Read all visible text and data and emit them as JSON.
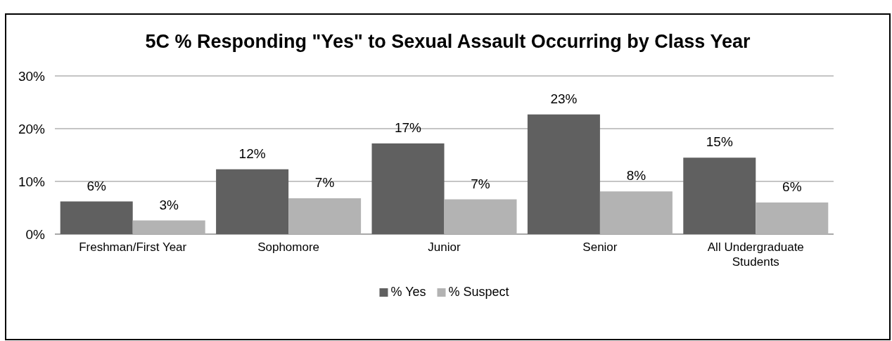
{
  "chart_data": {
    "type": "bar",
    "title": "5C % Responding \"Yes\" to Sexual Assault Occurring by Class Year",
    "categories": [
      "Freshman/First Year",
      "Sophomore",
      "Junior",
      "Senior",
      "All Undergraduate Students"
    ],
    "series": [
      {
        "name": "% Yes",
        "color": "#606060",
        "values": [
          6.2,
          12.3,
          17.2,
          22.7,
          14.5
        ],
        "value_labels": [
          "6%",
          "12%",
          "17%",
          "23%",
          "15%"
        ]
      },
      {
        "name": "% Suspect",
        "color": "#b3b3b3",
        "values": [
          2.6,
          6.8,
          6.6,
          8.1,
          6.0
        ],
        "value_labels": [
          "3%",
          "7%",
          "7%",
          "8%",
          "6%"
        ]
      }
    ],
    "ylim": [
      0,
      30
    ],
    "yticks": [
      {
        "value": 0,
        "label": "0%"
      },
      {
        "value": 10,
        "label": "10%"
      },
      {
        "value": 20,
        "label": "20%"
      },
      {
        "value": 30,
        "label": "30%"
      }
    ],
    "grid": "y",
    "legend": "bottom"
  }
}
